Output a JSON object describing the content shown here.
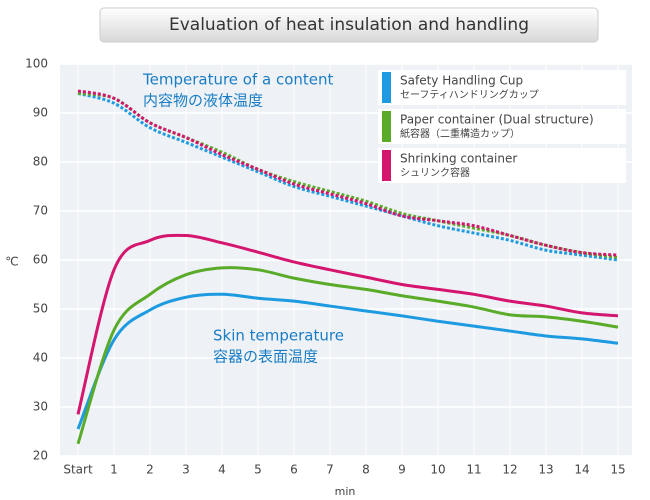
{
  "chart_data": {
    "type": "line",
    "title": "Evaluation of heat insulation and handling",
    "xlabel": "min",
    "ylabel": "℃",
    "annotations": [
      {
        "lines": [
          "Temperature of a content",
          "内容物の液体温度"
        ]
      },
      {
        "lines": [
          "Skin temperature",
          "容器の表面温度"
        ]
      }
    ],
    "categories": [
      "Start",
      "1",
      "2",
      "3",
      "4",
      "5",
      "6",
      "7",
      "8",
      "9",
      "10",
      "11",
      "12",
      "13",
      "14",
      "15"
    ],
    "ylim": [
      20,
      100
    ],
    "yticks": [
      20,
      30,
      40,
      50,
      60,
      70,
      80,
      90,
      100
    ],
    "grid": true,
    "series": [
      {
        "name": "Safety Handling Cup",
        "name_ja": "セーフティハンドリングカップ",
        "color": "#1e9be0",
        "content": [
          94,
          92,
          87,
          84,
          81,
          78,
          75,
          73,
          71,
          69,
          67,
          65.5,
          64,
          62,
          61,
          60
        ],
        "skin": [
          25.5,
          43.7,
          49.8,
          52.4,
          53,
          52.2,
          51.6,
          50.6,
          49.6,
          48.6,
          47.5,
          46.5,
          45.5,
          44.5,
          43.9,
          43
        ]
      },
      {
        "name": "Paper container (Dual structure)",
        "name_ja": "紙容器（二重構造カップ）",
        "color": "#5aab2a",
        "content": [
          94,
          93,
          88,
          85,
          82,
          78.5,
          76,
          74,
          72,
          69.5,
          68,
          66.5,
          65,
          63,
          61.5,
          60.5
        ],
        "skin": [
          22.5,
          45.7,
          53,
          57,
          58.4,
          58,
          56.3,
          55,
          54,
          52.7,
          51.6,
          50.4,
          48.8,
          48.4,
          47.5,
          46.3
        ]
      },
      {
        "name": "Shrinking container",
        "name_ja": "シュリンク容器",
        "color": "#d4166e",
        "content": [
          94.5,
          93,
          88,
          85,
          81.5,
          78.5,
          75.5,
          73.5,
          71.5,
          69,
          68,
          67,
          65,
          63,
          61.5,
          61
        ],
        "skin": [
          28.5,
          58,
          64,
          65,
          63.5,
          61.6,
          59.6,
          58,
          56.5,
          55,
          54,
          53,
          51.6,
          50.6,
          49.2,
          48.6
        ]
      }
    ]
  }
}
